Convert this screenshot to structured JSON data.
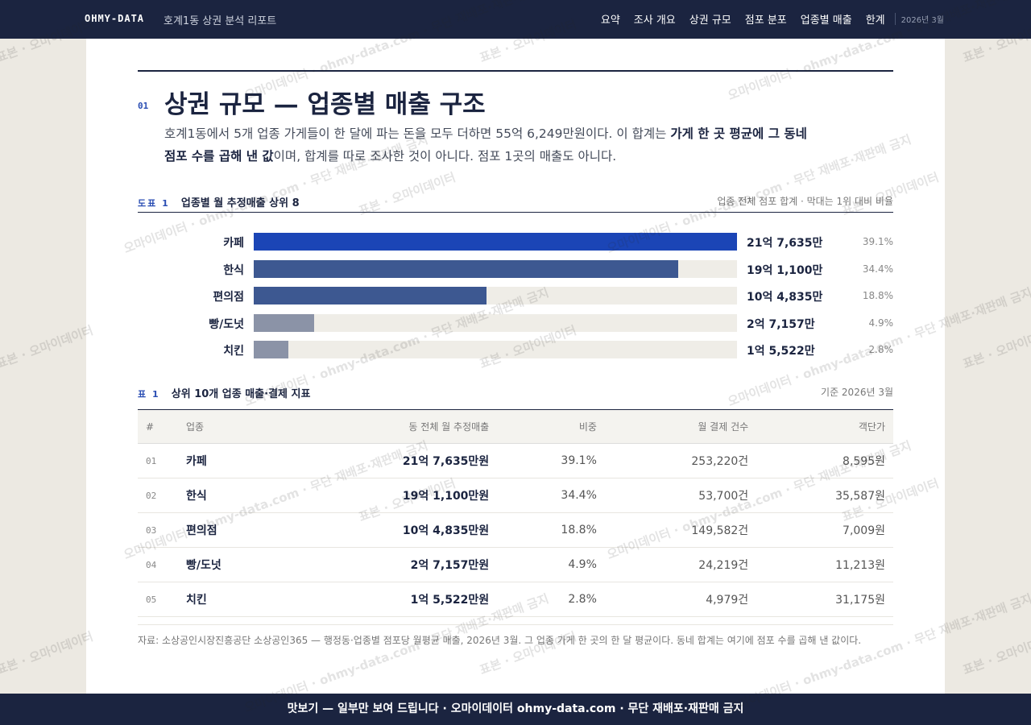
{
  "header": {
    "brand": "OHMY-DATA",
    "subtitle": "호계1동 상권 분석 리포트",
    "nav": [
      "요약",
      "조사 개요",
      "상권 규모",
      "점포 분포",
      "업종별 매출",
      "한계"
    ],
    "date": "2026년 3월"
  },
  "section": {
    "number": "01",
    "title": "상권 규모 — 업종별 매출 구조",
    "lead": [
      {
        "text": "호계1동에서 5개 업종 가게들이 한 달에 파는 돈을 모두 더하면 55억 6,249만원이다. 이 합계는 "
      },
      {
        "text": "가게 한 곳 평균에 그 동네 점포 수를 곱해 낸 값",
        "bold": true
      },
      {
        "text": "이며, 합계를 따로 조사한 것이 아니다. 점포 1곳의 매출도 아니다."
      }
    ]
  },
  "chart_data": {
    "type": "bar",
    "orientation": "horizontal",
    "label": "도표 1",
    "title": "업종별 월 추정매출 상위 8",
    "note": "업종 전체 점포 합계 · 막대는 1위 대비 비율",
    "categories": [
      "카페",
      "한식",
      "편의점",
      "빵/도넛",
      "치킨"
    ],
    "values": [
      217635,
      191100,
      104835,
      27157,
      15522
    ],
    "value_labels": [
      "21억 7,635만",
      "19억 1,100만",
      "10억 4,835만",
      "2억 7,157만",
      "1억 5,522만"
    ],
    "shares": [
      "39.1%",
      "34.4%",
      "18.8%",
      "4.9%",
      "2.8%"
    ],
    "colors": [
      "#1b45b6",
      "#3d5891",
      "#3d5891",
      "#8b93a7",
      "#8b93a7"
    ]
  },
  "table": {
    "label": "표 1",
    "title": "상위 10개 업종 매출·결제 지표",
    "note": "기준 2026년 3월",
    "columns": [
      "#",
      "업종",
      "동 전체 월 추정매출",
      "비중",
      "월 결제 건수",
      "객단가"
    ],
    "rows": [
      [
        "01",
        "카페",
        "21억 7,635만원",
        "39.1%",
        "253,220건",
        "8,595원"
      ],
      [
        "02",
        "한식",
        "19억 1,100만원",
        "34.4%",
        "53,700건",
        "35,587원"
      ],
      [
        "03",
        "편의점",
        "10억 4,835만원",
        "18.8%",
        "149,582건",
        "7,009원"
      ],
      [
        "04",
        "빵/도넛",
        "2억 7,157만원",
        "4.9%",
        "24,219건",
        "11,213원"
      ],
      [
        "05",
        "치킨",
        "1억 5,522만원",
        "2.8%",
        "4,979건",
        "31,175원"
      ]
    ]
  },
  "source": "자료: 소상공인시장진흥공단 소상공인365 — 행정동·업종별 점포당 월평균 매출, 2026년 3월. 그 업종 가게 한 곳의 한 달 평균이다. 동네 합계는 여기에 점포 수를 곱해 낸 값이다.",
  "footer": "맛보기 — 일부만 보여 드립니다 · 오마이데이터 ohmy-data.com · 무단 재배포·재판매 금지",
  "watermarks": [
    "표본 · 오마이데이터",
    "오마이데이터 · ohmy-data.com · 무단 재배포·재판매 금지"
  ]
}
